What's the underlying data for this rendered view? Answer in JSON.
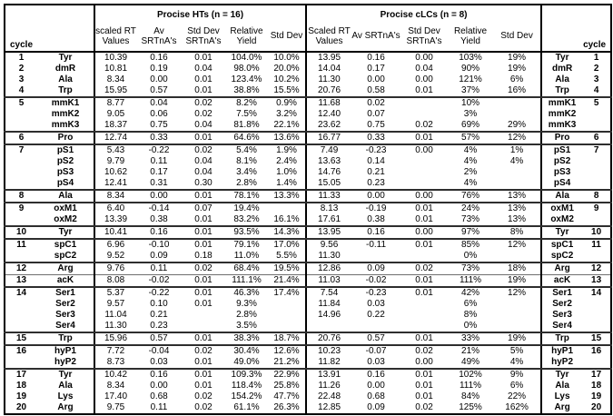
{
  "table": {
    "corner_label": "cycle",
    "left_group": {
      "title": "Procise HTs (n = 16)"
    },
    "right_group": {
      "title": "Procise cLCs (n = 8)"
    },
    "left_columns": [
      "scaled RT\nValues",
      "Av SRTnA's",
      "Std Dev\nSRTnA's",
      "Relative\nYield",
      "Std Dev"
    ],
    "right_columns": [
      "Scaled RT\nValues",
      "Av SRTnA's",
      "Std Dev\nSRTnA's",
      "Relative\nYield",
      "Std Dev"
    ],
    "rows": [
      {
        "cycle": "1",
        "name": "Tyr",
        "ht": [
          "10.39",
          "0.16",
          "0.01",
          "104.0%",
          "10.0%"
        ],
        "clc": [
          "13.95",
          "0.16",
          "0.00",
          "103%",
          "19%"
        ],
        "sep": "none"
      },
      {
        "cycle": "2",
        "name": "dmR",
        "ht": [
          "10.81",
          "0.19",
          "0.04",
          "98.0%",
          "20.0%"
        ],
        "clc": [
          "14.04",
          "0.17",
          "0.04",
          "90%",
          "19%"
        ],
        "sep": "none"
      },
      {
        "cycle": "3",
        "name": "Ala",
        "ht": [
          "8.34",
          "0.00",
          "0.01",
          "123.4%",
          "10.2%"
        ],
        "clc": [
          "11.30",
          "0.00",
          "0.00",
          "121%",
          "6%"
        ],
        "sep": "none"
      },
      {
        "cycle": "4",
        "name": "Trp",
        "ht": [
          "15.95",
          "0.57",
          "0.01",
          "38.8%",
          "15.5%"
        ],
        "clc": [
          "20.76",
          "0.58",
          "0.01",
          "37%",
          "16%"
        ],
        "sep": "thick"
      },
      {
        "cycle": "5",
        "name": "mmK1",
        "ht": [
          "8.77",
          "0.04",
          "0.02",
          "8.2%",
          "0.9%"
        ],
        "clc": [
          "11.68",
          "0.02",
          "",
          "10%",
          ""
        ],
        "sep": "none"
      },
      {
        "cycle": "",
        "name": "mmK2",
        "ht": [
          "9.05",
          "0.06",
          "0.02",
          "7.5%",
          "3.2%"
        ],
        "clc": [
          "12.40",
          "0.07",
          "",
          "3%",
          ""
        ],
        "sep": "none"
      },
      {
        "cycle": "",
        "name": "mmK3",
        "ht": [
          "18.37",
          "0.75",
          "0.04",
          "81.8%",
          "22.1%"
        ],
        "clc": [
          "23.62",
          "0.75",
          "0.02",
          "69%",
          "29%"
        ],
        "sep": "thick"
      },
      {
        "cycle": "6",
        "name": "Pro",
        "ht": [
          "12.74",
          "0.33",
          "0.01",
          "64.6%",
          "13.6%"
        ],
        "clc": [
          "16.77",
          "0.33",
          "0.01",
          "57%",
          "12%"
        ],
        "sep": "thick"
      },
      {
        "cycle": "7",
        "name": "pS1",
        "ht": [
          "5.43",
          "-0.22",
          "0.02",
          "5.4%",
          "1.9%"
        ],
        "clc": [
          "7.49",
          "-0.23",
          "0.00",
          "4%",
          "1%"
        ],
        "sep": "none"
      },
      {
        "cycle": "",
        "name": "pS2",
        "ht": [
          "9.79",
          "0.11",
          "0.04",
          "8.1%",
          "2.4%"
        ],
        "clc": [
          "13.63",
          "0.14",
          "",
          "4%",
          "4%"
        ],
        "sep": "none"
      },
      {
        "cycle": "",
        "name": "pS3",
        "ht": [
          "10.62",
          "0.17",
          "0.04",
          "3.4%",
          "1.0%"
        ],
        "clc": [
          "14.76",
          "0.21",
          "",
          "2%",
          ""
        ],
        "sep": "none"
      },
      {
        "cycle": "",
        "name": "pS4",
        "ht": [
          "12.41",
          "0.31",
          "0.30",
          "2.8%",
          "1.4%"
        ],
        "clc": [
          "15.05",
          "0.23",
          "",
          "4%",
          ""
        ],
        "sep": "thick"
      },
      {
        "cycle": "8",
        "name": "Ala",
        "ht": [
          "8.34",
          "0.00",
          "0.01",
          "78.1%",
          "13.3%"
        ],
        "clc": [
          "11.33",
          "0.00",
          "0.00",
          "76%",
          "13%"
        ],
        "sep": "thick"
      },
      {
        "cycle": "9",
        "name": "oxM1",
        "ht": [
          "6.40",
          "-0.14",
          "0.07",
          "19.4%",
          ""
        ],
        "clc": [
          "8.13",
          "-0.19",
          "0.01",
          "24%",
          "13%"
        ],
        "sep": "none"
      },
      {
        "cycle": "",
        "name": "oxM2",
        "ht": [
          "13.39",
          "0.38",
          "0.01",
          "83.2%",
          "16.1%"
        ],
        "clc": [
          "17.61",
          "0.38",
          "0.01",
          "73%",
          "13%"
        ],
        "sep": "thick"
      },
      {
        "cycle": "10",
        "name": "Tyr",
        "ht": [
          "10.41",
          "0.16",
          "0.01",
          "93.5%",
          "14.3%"
        ],
        "clc": [
          "13.95",
          "0.16",
          "0.00",
          "97%",
          "8%"
        ],
        "sep": "thick"
      },
      {
        "cycle": "11",
        "name": "spC1",
        "ht": [
          "6.96",
          "-0.10",
          "0.01",
          "79.1%",
          "17.0%"
        ],
        "clc": [
          "9.56",
          "-0.11",
          "0.01",
          "85%",
          "12%"
        ],
        "sep": "none"
      },
      {
        "cycle": "",
        "name": "spC2",
        "ht": [
          "9.52",
          "0.09",
          "0.18",
          "11.0%",
          "5.5%"
        ],
        "clc": [
          "11.30",
          "",
          "",
          "0%",
          ""
        ],
        "sep": "thick"
      },
      {
        "cycle": "12",
        "name": "Arg",
        "ht": [
          "9.76",
          "0.11",
          "0.02",
          "68.4%",
          "19.5%"
        ],
        "clc": [
          "12.86",
          "0.09",
          "0.02",
          "73%",
          "18%"
        ],
        "sep": "thin"
      },
      {
        "cycle": "13",
        "name": "acK",
        "ht": [
          "8.08",
          "-0.02",
          "0.01",
          "111.1%",
          "21.4%"
        ],
        "clc": [
          "11.03",
          "-0.02",
          "0.01",
          "111%",
          "19%"
        ],
        "sep": "thick"
      },
      {
        "cycle": "14",
        "name": "Ser1",
        "ht": [
          "5.37",
          "-0.22",
          "0.01",
          "46.3%",
          "17.4%"
        ],
        "clc": [
          "7.54",
          "-0.23",
          "0.01",
          "42%",
          "12%"
        ],
        "sep": "none"
      },
      {
        "cycle": "",
        "name": "Ser2",
        "ht": [
          "9.57",
          "0.10",
          "0.01",
          "9.3%",
          ""
        ],
        "clc": [
          "11.84",
          "0.03",
          "",
          "6%",
          ""
        ],
        "sep": "none"
      },
      {
        "cycle": "",
        "name": "Ser3",
        "ht": [
          "11.04",
          "0.21",
          "",
          "2.8%",
          ""
        ],
        "clc": [
          "14.96",
          "0.22",
          "",
          "8%",
          ""
        ],
        "sep": "none"
      },
      {
        "cycle": "",
        "name": "Ser4",
        "ht": [
          "11.30",
          "0.23",
          "",
          "3.5%",
          ""
        ],
        "clc": [
          "",
          "",
          "",
          "0%",
          ""
        ],
        "sep": "thick"
      },
      {
        "cycle": "15",
        "name": "Trp",
        "ht": [
          "15.96",
          "0.57",
          "0.01",
          "38.3%",
          "18.7%"
        ],
        "clc": [
          "20.76",
          "0.57",
          "0.01",
          "33%",
          "19%"
        ],
        "sep": "thick"
      },
      {
        "cycle": "16",
        "name": "hyP1",
        "ht": [
          "7.72",
          "-0.04",
          "0.02",
          "30.4%",
          "12.6%"
        ],
        "clc": [
          "10.23",
          "-0.07",
          "0.02",
          "21%",
          "5%"
        ],
        "sep": "none"
      },
      {
        "cycle": "",
        "name": "hyP2",
        "ht": [
          "8.73",
          "0.03",
          "0.01",
          "49.0%",
          "21.2%"
        ],
        "clc": [
          "11.82",
          "0.03",
          "0.00",
          "49%",
          "4%"
        ],
        "sep": "thick"
      },
      {
        "cycle": "17",
        "name": "Tyr",
        "ht": [
          "10.42",
          "0.16",
          "0.01",
          "109.3%",
          "22.9%"
        ],
        "clc": [
          "13.91",
          "0.16",
          "0.01",
          "102%",
          "9%"
        ],
        "sep": "none"
      },
      {
        "cycle": "18",
        "name": "Ala",
        "ht": [
          "8.34",
          "0.00",
          "0.01",
          "118.4%",
          "25.8%"
        ],
        "clc": [
          "11.26",
          "0.00",
          "0.01",
          "111%",
          "6%"
        ],
        "sep": "none"
      },
      {
        "cycle": "19",
        "name": "Lys",
        "ht": [
          "17.40",
          "0.68",
          "0.02",
          "154.2%",
          "47.7%"
        ],
        "clc": [
          "22.48",
          "0.68",
          "0.01",
          "84%",
          "22%"
        ],
        "sep": "none"
      },
      {
        "cycle": "20",
        "name": "Arg",
        "ht": [
          "9.75",
          "0.11",
          "0.02",
          "61.1%",
          "26.3%"
        ],
        "clc": [
          "12.85",
          "0.09",
          "0.02",
          "125%",
          "162%"
        ],
        "sep": "none"
      }
    ]
  }
}
